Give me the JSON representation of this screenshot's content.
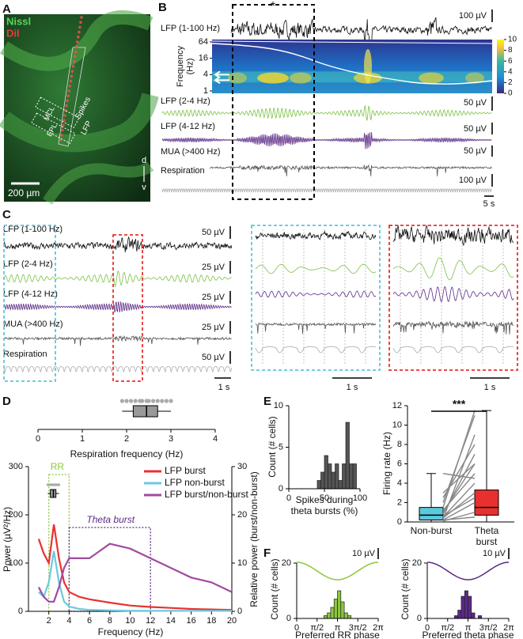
{
  "panel_labels": [
    "A",
    "B",
    "C",
    "D",
    "E",
    "F"
  ],
  "panel_a": {
    "stains": [
      "Nissl",
      "DiI"
    ],
    "layers": [
      "MCL",
      "EPL"
    ],
    "sites": [
      "Spikes",
      "LFP"
    ],
    "scale_bar": "200 µm",
    "orientation": [
      "d",
      "v"
    ]
  },
  "panel_b": {
    "traces": [
      "LFP (1-100 Hz)",
      "LFP (2-4 Hz)",
      "LFP (4-12 Hz)",
      "MUA (>400 Hz)",
      "Respiration"
    ],
    "scale_labels": [
      "100 µV",
      "50 µV",
      "50 µV",
      "50 µV",
      "100 µV"
    ],
    "time_scale": "5 s",
    "marker": "*",
    "spectrogram": {
      "ylabel": "Frequency\n(Hz)",
      "yticks": [
        1,
        4,
        16,
        64
      ],
      "log_scale": true,
      "colorbar_lim": [
        0,
        10
      ],
      "colorbar_ticks": [
        0,
        2,
        4,
        6,
        8,
        10
      ]
    }
  },
  "panel_c": {
    "traces": [
      "LFP (1-100 Hz)",
      "LFP (2-4 Hz)",
      "LFP (4-12 Hz)",
      "MUA (>400 Hz)",
      "Respiration"
    ],
    "scale_labels": [
      "50 µV",
      "25 µV",
      "25 µV",
      "25 µV",
      "50 µV"
    ],
    "time_scales": [
      "1 s",
      "1 s",
      "1 s"
    ]
  },
  "chart_data": [
    {
      "type": "box",
      "orientation": "horizontal",
      "xlabel": "Respiration frequency (Hz)",
      "xlim": [
        0,
        4
      ],
      "xticks": [
        0,
        1,
        2,
        3,
        4
      ],
      "box": {
        "min": 1.9,
        "q1": 2.15,
        "median": 2.45,
        "q3": 2.7,
        "max": 3.0
      },
      "points": [
        1.9,
        2.0,
        2.1,
        2.2,
        2.3,
        2.35,
        2.45,
        2.5,
        2.6,
        2.7,
        2.8,
        2.9,
        3.0
      ],
      "color": "#999999"
    },
    {
      "type": "line",
      "xlabel": "Frequency (Hz)",
      "ylabel": "Power (µV²/Hz)",
      "y2label": "Relative power (burst/non-burst)",
      "xlim": [
        0,
        20
      ],
      "xticks": [
        2,
        4,
        6,
        8,
        10,
        12,
        14,
        16,
        18,
        20
      ],
      "ylim": [
        0,
        300
      ],
      "yticks": [
        0,
        100,
        200,
        300
      ],
      "y2lim": [
        0,
        30
      ],
      "y2ticks": [
        0,
        10,
        20,
        30
      ],
      "x": [
        1,
        1.5,
        2,
        2.5,
        3,
        3.5,
        4,
        5,
        6,
        8,
        10,
        12,
        14,
        16,
        18,
        20
      ],
      "series": [
        {
          "name": "LFP burst",
          "color": "#e8312f",
          "values": [
            150,
            120,
            100,
            180,
            110,
            60,
            40,
            30,
            25,
            18,
            12,
            9,
            7,
            5,
            4,
            3
          ]
        },
        {
          "name": "LFP non-burst",
          "color": "#6cc9df",
          "values": [
            40,
            30,
            60,
            125,
            60,
            20,
            10,
            5,
            3,
            2,
            1,
            1,
            1,
            1,
            1,
            1
          ]
        },
        {
          "name": "LFP burst/non-burst",
          "color": "#a04aa0",
          "axis": "y2",
          "values": [
            5,
            3,
            2,
            2,
            5,
            9,
            11,
            11,
            11,
            14,
            13,
            11,
            9,
            7,
            6,
            4
          ]
        }
      ],
      "legend": "upper right",
      "regions": [
        {
          "label": "RR",
          "range": [
            2,
            4
          ],
          "color": "#8dc63f"
        },
        {
          "label": "Theta burst",
          "range": [
            4,
            12
          ],
          "color": "#5b2a86"
        }
      ]
    },
    {
      "type": "histogram",
      "xlabel": "Spikes during\ntheta bursts (%)",
      "ylabel": "Count (# cells)",
      "xlim": [
        0,
        100
      ],
      "xticks": [
        0,
        50,
        100
      ],
      "ylim": [
        0,
        10
      ],
      "yticks": [
        0,
        5,
        10
      ],
      "bins": [
        40,
        45,
        50,
        55,
        60,
        65,
        70,
        75,
        80,
        85,
        90,
        95
      ],
      "counts": [
        1,
        2,
        4,
        3,
        2,
        3,
        1,
        3,
        8,
        3,
        3
      ],
      "color": "#555555"
    },
    {
      "type": "box",
      "orientation": "vertical",
      "ylabel": "Firing rate (Hz)",
      "ylim": [
        0,
        12
      ],
      "yticks": [
        0,
        2,
        4,
        6,
        8,
        10,
        12
      ],
      "categories": [
        "Non-burst",
        "Theta\nburst"
      ],
      "colors": [
        "#5bc8dc",
        "#e8312f"
      ],
      "boxes": [
        {
          "min": 0,
          "q1": 0.2,
          "median": 0.7,
          "q3": 1.5,
          "max": 5
        },
        {
          "min": 0,
          "q1": 0.7,
          "median": 1.5,
          "q3": 3.3,
          "max": 11.5
        }
      ],
      "pairs": [
        [
          0.2,
          2
        ],
        [
          0.5,
          4
        ],
        [
          1,
          6
        ],
        [
          1.5,
          11.5
        ],
        [
          2,
          11
        ],
        [
          0.3,
          9
        ],
        [
          0.8,
          7
        ],
        [
          0.1,
          1
        ],
        [
          0.4,
          3
        ],
        [
          1.2,
          5
        ],
        [
          3,
          6
        ],
        [
          5,
          4.5
        ],
        [
          0.6,
          2.5
        ],
        [
          2.5,
          8
        ],
        [
          0.2,
          0.5
        ]
      ],
      "significance": "***"
    },
    {
      "type": "histogram",
      "xlabel": "Preferred RR phase",
      "ylabel": "Count (# cells)",
      "scale_label": "10 µV",
      "xlim": [
        0,
        6.2832
      ],
      "xticks": [
        0,
        {
          "value": 1.5708,
          "label": "π/2"
        },
        {
          "value": 3.1416,
          "label": "π"
        },
        {
          "value": 4.7124,
          "label": "3π/2"
        },
        {
          "value": 6.2832,
          "label": "2π"
        }
      ],
      "ylim": [
        0,
        20
      ],
      "yticks": [
        0,
        20
      ],
      "bins": [
        2.094,
        2.356,
        2.618,
        2.88,
        3.142,
        3.403,
        3.665,
        3.927,
        4.189
      ],
      "counts": [
        1,
        2,
        4,
        7,
        10,
        6,
        2,
        1
      ],
      "color": "#8dc63f"
    },
    {
      "type": "histogram",
      "xlabel": "Preferred theta phase",
      "ylabel": "Count (# cells)",
      "scale_label": "10 µV",
      "xlim": [
        0,
        6.2832
      ],
      "xticks": [
        0,
        {
          "value": 1.5708,
          "label": "π/2"
        },
        {
          "value": 3.1416,
          "label": "π"
        },
        {
          "value": 4.7124,
          "label": "3π/2"
        },
        {
          "value": 6.2832,
          "label": "2π"
        }
      ],
      "ylim": [
        0,
        20
      ],
      "yticks": [
        0,
        20
      ],
      "bins": [
        2.094,
        2.356,
        2.618,
        2.88,
        3.142,
        3.403,
        3.665,
        3.927,
        4.189
      ],
      "counts": [
        1,
        3,
        8,
        10,
        8,
        2,
        0,
        1
      ],
      "color": "#5b2a86"
    }
  ]
}
